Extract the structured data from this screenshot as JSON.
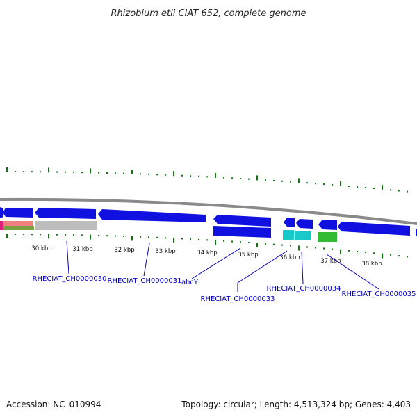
{
  "title": "Rhizobium etli CIAT 652, complete genome",
  "footer": {
    "accession": "Accession: NC_010994",
    "summary": "Topology: circular; Length: 4,513,324 bp; Genes: 4,403"
  },
  "ruler": {
    "labels": [
      "30 kbp",
      "31 kbp",
      "32 kbp",
      "33 kbp",
      "34 kbp",
      "35 kbp",
      "36 kbp",
      "37 kbp",
      "38 kbp"
    ]
  },
  "colors": {
    "forward_gene": "#1010e0",
    "reverse_gene": "#1010e0",
    "backbone": "#8a8a8a",
    "gc_ticks": "#0b7a0b",
    "label_text": "#0000c0",
    "grey_feature": "#bdbdbd",
    "cyan_feature": "#19c8c8",
    "green_feature": "#33bb33",
    "magenta_feature": "#e0207a",
    "olive_feature": "#7aa040",
    "pink_feature": "#f08080"
  },
  "genes": [
    {
      "label": "RHECIAT_CH0000030"
    },
    {
      "label": "RHECIAT_CH0000031"
    },
    {
      "label": "ahcY"
    },
    {
      "label": "RHECIAT_CH0000033"
    },
    {
      "label": "RHECIAT_CH0000034"
    },
    {
      "label": "RHECIAT_CH0000035"
    }
  ]
}
